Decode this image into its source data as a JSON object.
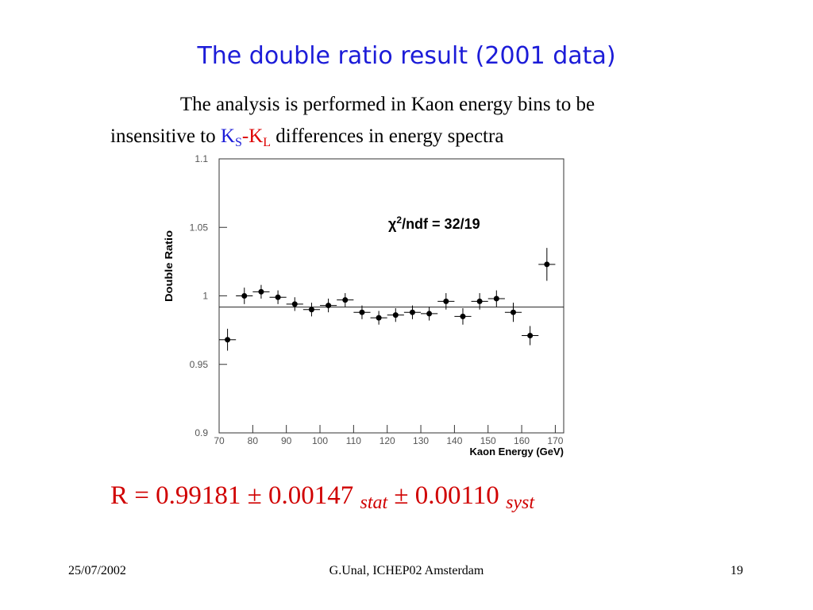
{
  "slide": {
    "title": "The double ratio result (2001 data)",
    "intro_line1": "The analysis is performed in Kaon energy bins to be",
    "intro_line2": {
      "before": "insensitive to ",
      "k1": "K",
      "k1_sub": "S",
      "dash": "-",
      "k2": "K",
      "k2_sub": "L",
      "after": " differences in energy spectra"
    },
    "result": {
      "main": "R = 0.99181 ± 0.00147 ",
      "stat": "stat",
      "mid": " ± 0.00110 ",
      "syst": "syst"
    },
    "footer": {
      "date": "25/07/2002",
      "author": "G.Unal, ICHEP02 Amsterdam",
      "page": "19"
    }
  },
  "chart_data": {
    "type": "errorbar",
    "x_label": "Kaon Energy (GeV)",
    "y_label": "Double Ratio",
    "annotation": {
      "chi": "χ",
      "sup": "2",
      "rest": "/ndf = 32/19"
    },
    "x": [
      72.5,
      77.5,
      82.5,
      87.5,
      92.5,
      97.5,
      102.5,
      107.5,
      112.5,
      117.5,
      122.5,
      127.5,
      132.5,
      137.5,
      142.5,
      147.5,
      152.5,
      157.5,
      162.5,
      167.5
    ],
    "values": [
      0.968,
      1.0,
      1.003,
      0.999,
      0.994,
      0.99,
      0.993,
      0.997,
      0.988,
      0.984,
      0.986,
      0.988,
      0.987,
      0.996,
      0.985,
      0.996,
      0.998,
      0.988,
      0.971,
      1.023
    ],
    "yerr": [
      0.008,
      0.006,
      0.005,
      0.005,
      0.005,
      0.005,
      0.005,
      0.005,
      0.005,
      0.005,
      0.005,
      0.005,
      0.005,
      0.006,
      0.006,
      0.006,
      0.006,
      0.007,
      0.007,
      0.012
    ],
    "xerr": 2.5,
    "reference_line": 0.99181,
    "color": "#000000",
    "xlim": [
      70,
      172.5
    ],
    "ylim": [
      0.9,
      1.1
    ],
    "xticks": [
      70,
      80,
      90,
      100,
      110,
      120,
      130,
      140,
      150,
      160,
      170
    ],
    "yticks": [
      0.9,
      0.95,
      1,
      1.05,
      1.1
    ]
  }
}
